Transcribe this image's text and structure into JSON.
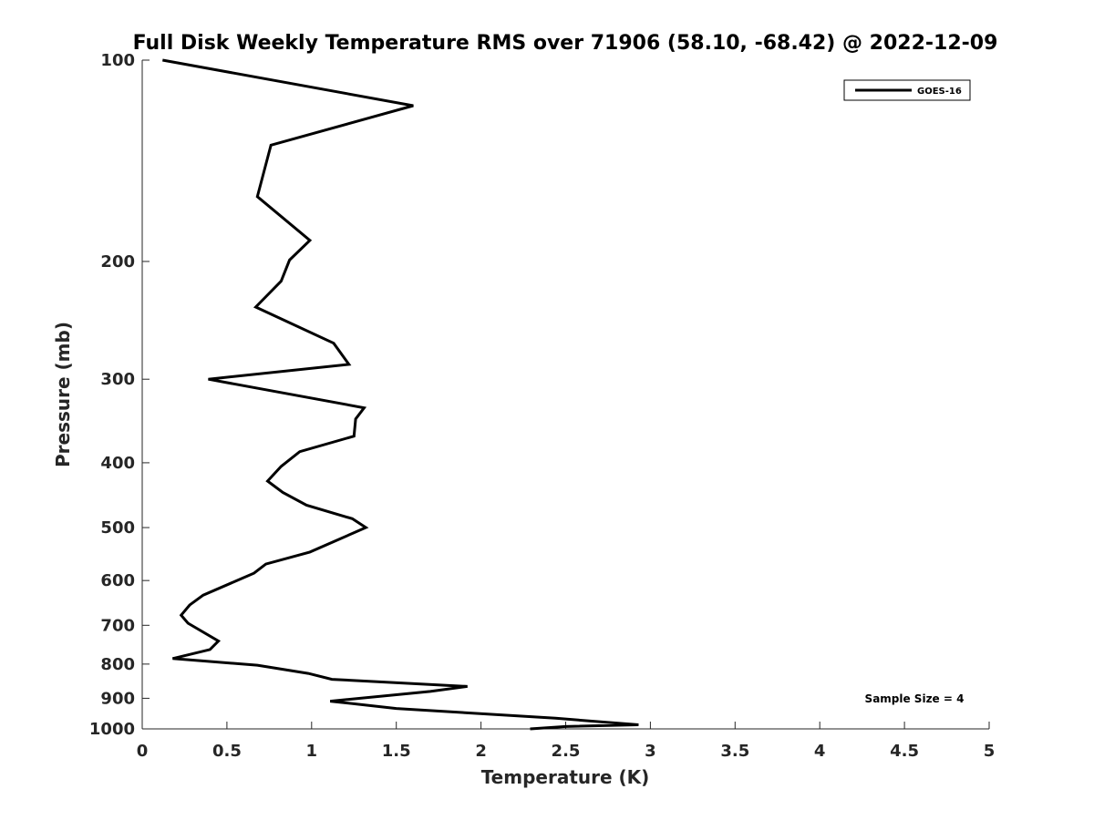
{
  "chart_data": {
    "type": "line",
    "title": "Full Disk Weekly Temperature RMS over 71906 (58.10, -68.42) @ 2022-12-09",
    "xlabel": "Temperature (K)",
    "ylabel": "Pressure (mb)",
    "xlim": [
      0,
      5
    ],
    "ylim": [
      100,
      1000
    ],
    "y_scale": "log",
    "y_reversed": true,
    "x_ticks": [
      "0",
      "0.5",
      "1",
      "1.5",
      "2",
      "2.5",
      "3",
      "3.5",
      "4",
      "4.5",
      "5"
    ],
    "y_ticks": [
      "100",
      "200",
      "300",
      "400",
      "500",
      "600",
      "700",
      "800",
      "900",
      "1000"
    ],
    "legend_position": "top-right",
    "grid": false,
    "series": [
      {
        "name": "GOES-16",
        "color": "#000000",
        "x": [
          0.12,
          1.6,
          0.76,
          0.68,
          0.99,
          0.87,
          0.82,
          0.67,
          1.13,
          1.22,
          0.39,
          1.31,
          1.26,
          1.25,
          0.93,
          0.82,
          0.74,
          0.83,
          0.97,
          1.24,
          1.32,
          0.99,
          0.73,
          0.66,
          0.36,
          0.28,
          0.23,
          0.27,
          0.45,
          0.4,
          0.18,
          0.68,
          0.98,
          1.12,
          1.92,
          1.7,
          1.11,
          1.5,
          2.44,
          2.93,
          2.5,
          2.29
        ],
        "y": [
          100,
          117,
          134,
          160,
          186,
          199,
          214,
          234,
          265,
          285,
          300,
          331,
          344,
          365,
          385,
          405,
          426,
          443,
          463,
          485,
          500,
          544,
          567,
          585,
          631,
          653,
          676,
          695,
          739,
          761,
          785,
          803,
          826,
          843,
          864,
          879,
          909,
          932,
          964,
          986,
          992,
          1000
        ]
      }
    ],
    "annotations": [
      "Sample Size = 4"
    ]
  }
}
